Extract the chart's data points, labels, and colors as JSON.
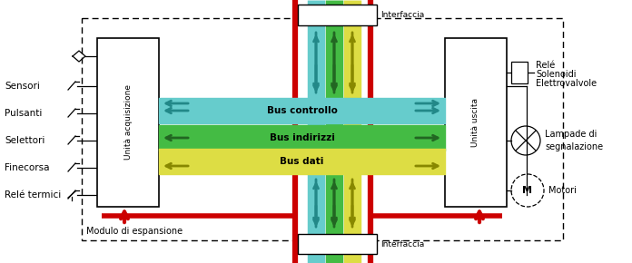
{
  "bg": "#ffffff",
  "c_ctrl": "#66cccc",
  "c_ind": "#44bb44",
  "c_dati": "#dddd44",
  "c_red": "#cc0000",
  "c_dark_ctrl": "#228888",
  "c_dark_ind": "#226622",
  "c_dark_dati": "#888800",
  "left_labels": [
    "Sensori",
    "Pulsanti",
    "Selettori",
    "Finecorsa",
    "Relé termici"
  ],
  "right_label1": [
    "Relé",
    "Solenoidi",
    "Elettrovalvole"
  ],
  "right_label2": [
    "Lampade di",
    "segnalazione"
  ],
  "right_label3": "Motori",
  "bus_labels": [
    "Bus controllo",
    "Bus indirizzi",
    "Bus dati"
  ],
  "acq_label": "Unità acquisizione",
  "usc_label": "Unità uscita",
  "iface_label": "Interfaccia",
  "mod_label": "Modulo di espansione"
}
